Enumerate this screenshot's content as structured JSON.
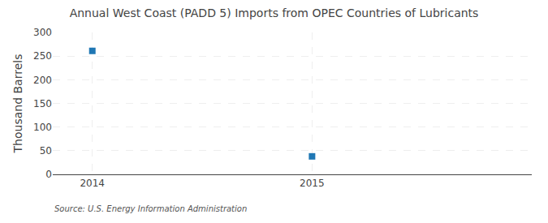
{
  "chart_data": {
    "type": "scatter",
    "title": "Annual West Coast (PADD 5) Imports from OPEC Countries of Lubricants",
    "ylabel": "Thousand Barrels",
    "annotations": [
      "Source: U.S. Energy Information Administration"
    ],
    "x": [
      2014,
      2015
    ],
    "values": [
      261,
      38
    ],
    "marker": "square",
    "xlim": [
      2013.82,
      2016.0
    ],
    "xticks": [
      2014,
      2015
    ],
    "ylim": [
      0,
      300
    ],
    "yticks": [
      0,
      50,
      100,
      150,
      200,
      250,
      300
    ],
    "grid": true
  }
}
